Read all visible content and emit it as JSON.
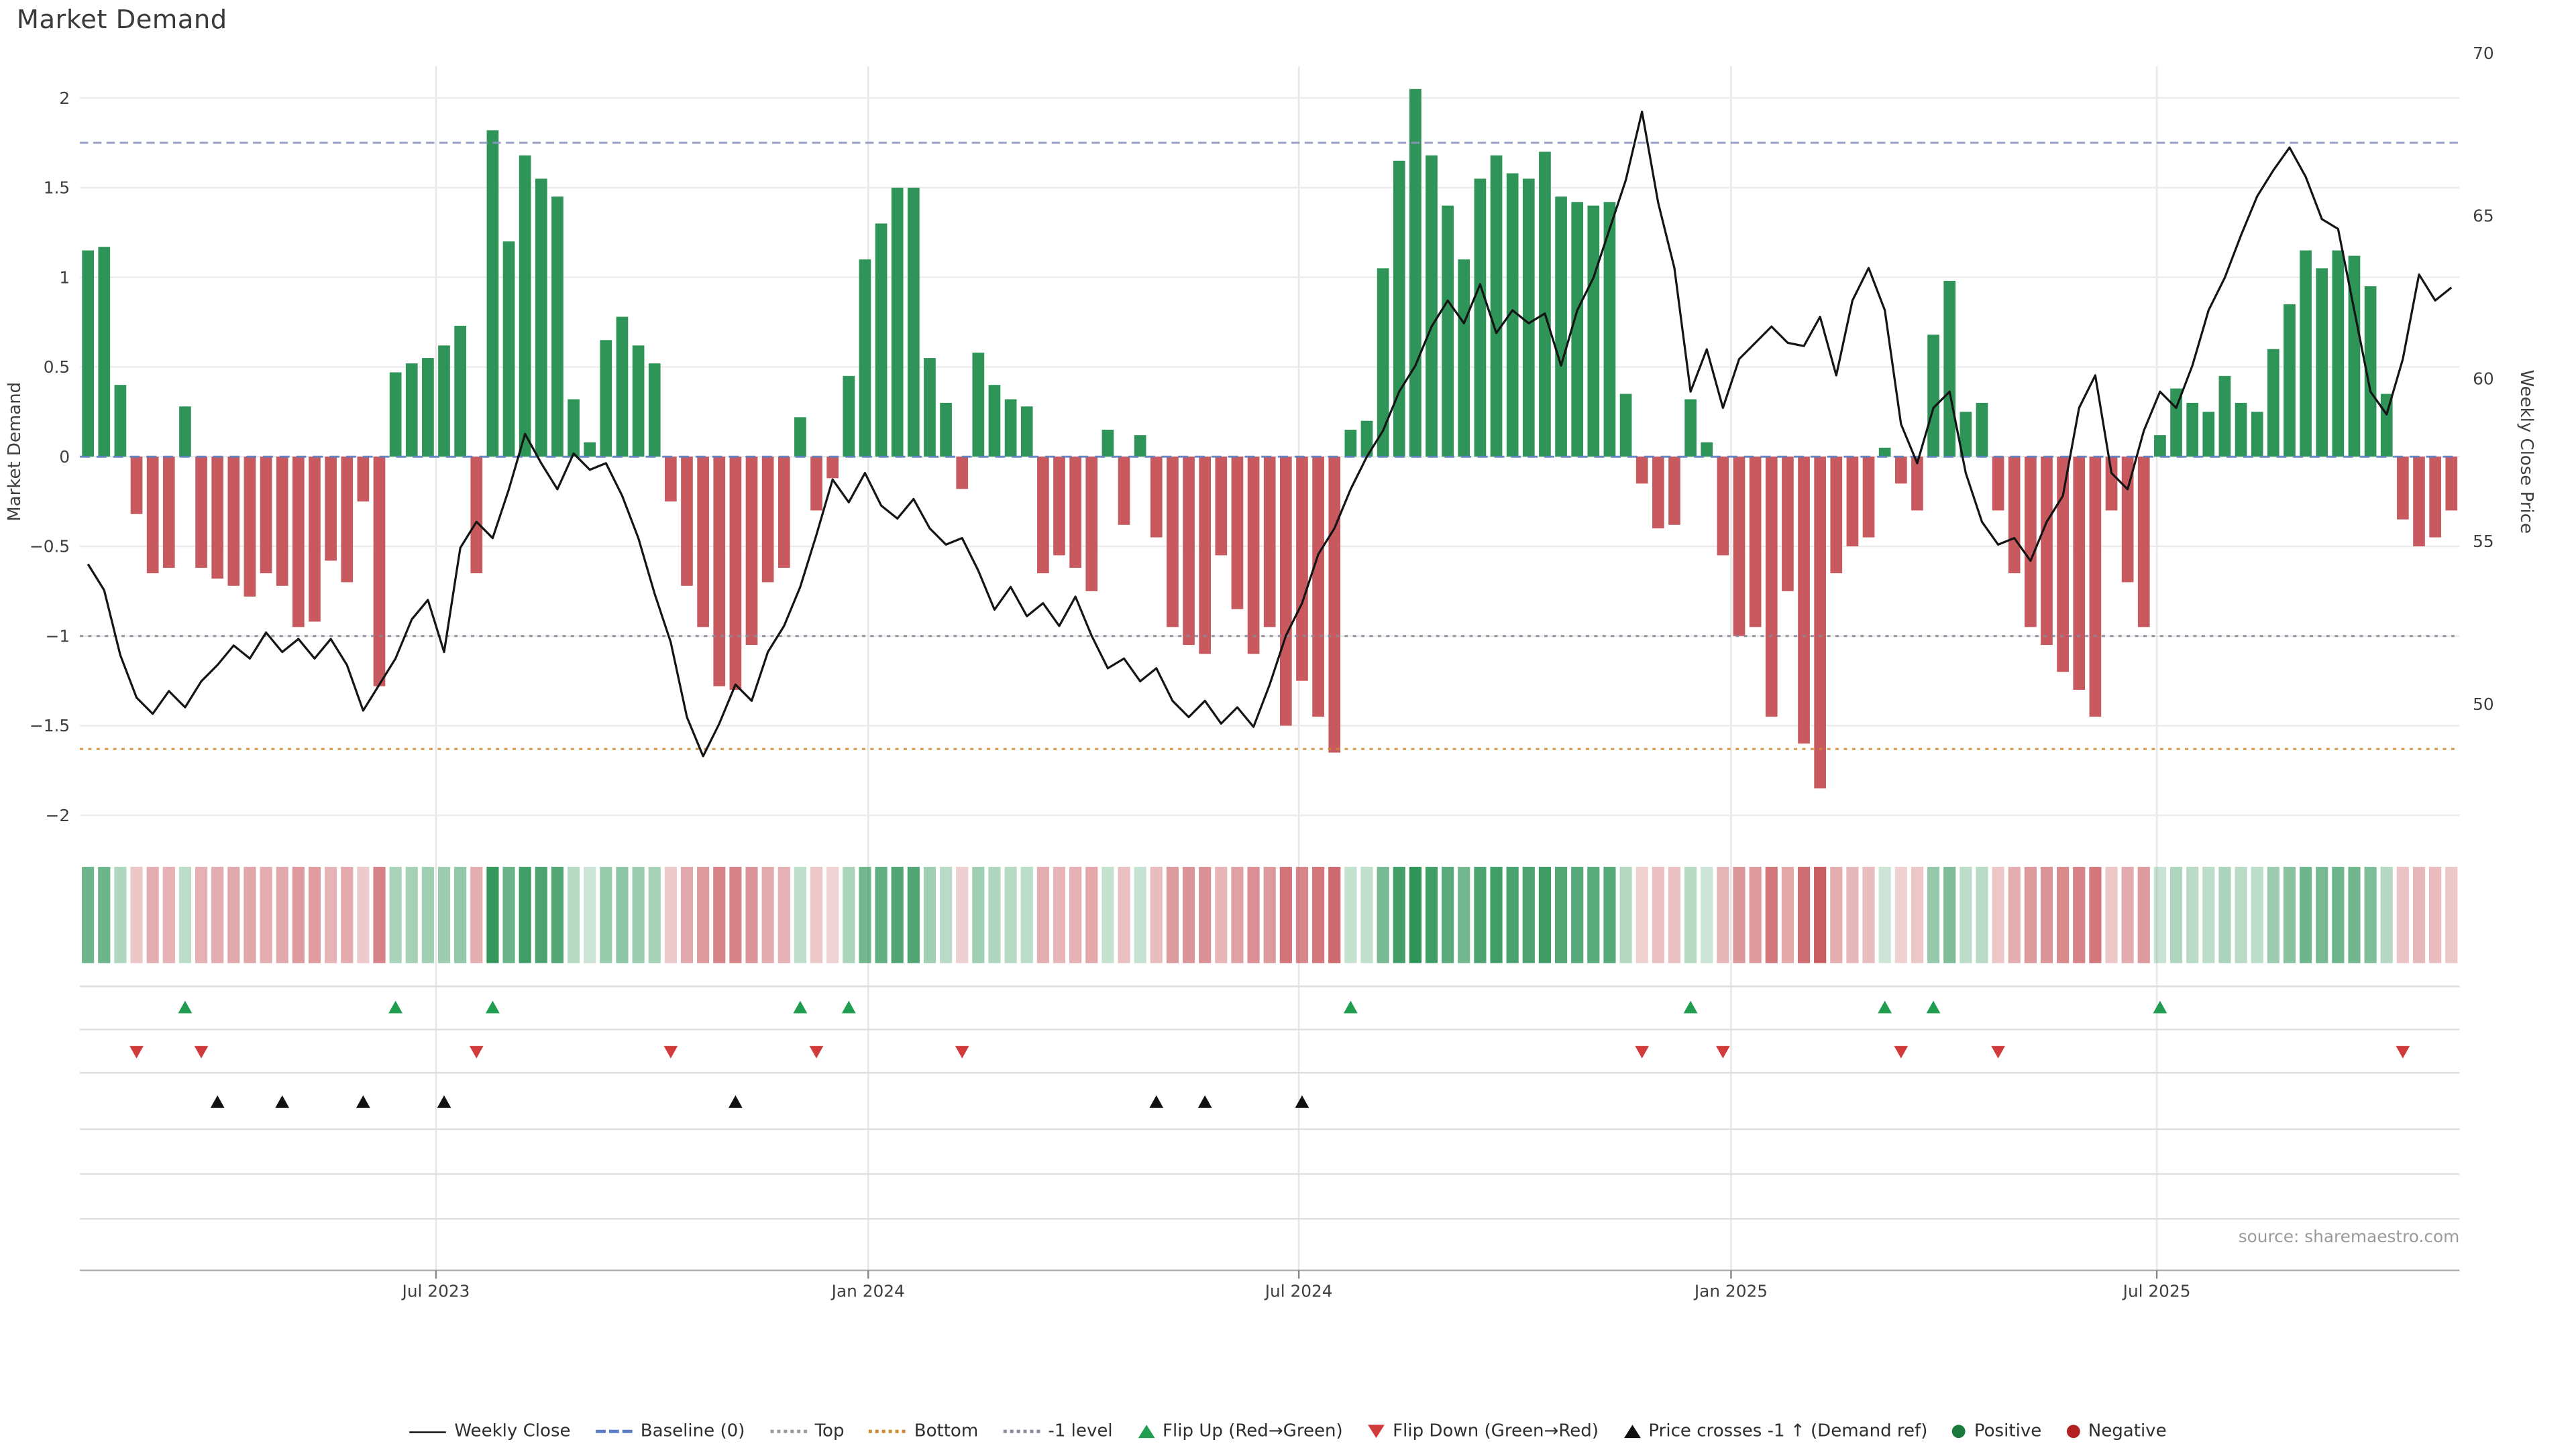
{
  "title": "Market Demand",
  "source": "source: sharemaestro.com",
  "axes": {
    "left_label": "Market Demand",
    "right_label": "Weekly Close Price",
    "left_ticks": [
      {
        "value": 2,
        "label": "2"
      },
      {
        "value": 1.5,
        "label": "1.5"
      },
      {
        "value": 1,
        "label": "1"
      },
      {
        "value": 0.5,
        "label": "0.5"
      },
      {
        "value": 0,
        "label": "0"
      },
      {
        "value": -0.5,
        "label": "−0.5"
      },
      {
        "value": -1,
        "label": "−1"
      },
      {
        "value": -1.5,
        "label": "−1.5"
      },
      {
        "value": -2,
        "label": "−2"
      }
    ],
    "right_ticks": [
      {
        "value": 70,
        "label": "70"
      },
      {
        "value": 65,
        "label": "65"
      },
      {
        "value": 60,
        "label": "60"
      },
      {
        "value": 55,
        "label": "55"
      },
      {
        "value": 50,
        "label": "50"
      }
    ]
  },
  "colors": {
    "positive_bar": "#2e9457",
    "negative_bar": "#c85a5f",
    "price_line": "#151515",
    "baseline": "#5b7fc2",
    "top_line": "#8f96c0",
    "bottom_line": "#cc8a33",
    "minus1_line": "#8a8898",
    "flip_up": "#1f9e4f",
    "flip_down": "#d13b3b",
    "price_cross": "#111111",
    "positive_dot": "#1a7a3c",
    "negative_dot": "#b22222",
    "grid": "#ececec",
    "separator": "#dedede",
    "axis_line": "#b0b0b0",
    "tick_text": "#3f3f3f",
    "source_text": "#9a9a9a"
  },
  "chart_data": {
    "type": "bar",
    "title": "Market Demand",
    "x_unit": "week",
    "x_axis": {
      "tick_labels": [
        "Jul 2023",
        "Jan 2024",
        "Jul 2024",
        "Jan 2025",
        "Jul 2025"
      ],
      "tick_weeks": [
        21.5,
        48.2,
        74.8,
        101.5,
        127.8
      ]
    },
    "y_left": {
      "label": "Market Demand",
      "range": [
        -2.18,
        2.18
      ]
    },
    "y_right": {
      "label": "Weekly Close Price",
      "range": [
        45.9,
        69.6
      ]
    },
    "grid": true,
    "legend_position": "bottom",
    "series": [
      {
        "name": "Market Demand",
        "type": "bar",
        "axis": "left",
        "values": [
          1.15,
          1.17,
          0.4,
          -0.32,
          -0.65,
          -0.62,
          0.28,
          -0.62,
          -0.68,
          -0.72,
          -0.78,
          -0.65,
          -0.72,
          -0.95,
          -0.92,
          -0.58,
          -0.7,
          -0.25,
          -1.28,
          0.47,
          0.52,
          0.55,
          0.62,
          0.73,
          -0.65,
          1.82,
          1.2,
          1.68,
          1.55,
          1.45,
          0.32,
          0.08,
          0.65,
          0.78,
          0.62,
          0.52,
          -0.25,
          -0.72,
          -0.95,
          -1.28,
          -1.3,
          -1.05,
          -0.7,
          -0.62,
          0.22,
          -0.3,
          -0.12,
          0.45,
          1.1,
          1.3,
          1.5,
          1.5,
          0.55,
          0.3,
          -0.18,
          0.58,
          0.4,
          0.32,
          0.28,
          -0.65,
          -0.55,
          -0.62,
          -0.75,
          0.15,
          -0.38,
          0.12,
          -0.45,
          -0.95,
          -1.05,
          -1.1,
          -0.55,
          -0.85,
          -1.1,
          -0.95,
          -1.5,
          -1.25,
          -1.45,
          -1.65,
          0.15,
          0.2,
          1.05,
          1.65,
          2.05,
          1.68,
          1.4,
          1.1,
          1.55,
          1.68,
          1.58,
          1.55,
          1.7,
          1.45,
          1.42,
          1.4,
          1.42,
          0.35,
          -0.15,
          -0.4,
          -0.38,
          0.32,
          0.08,
          -0.55,
          -1.0,
          -0.95,
          -1.45,
          -0.75,
          -1.6,
          -1.85,
          -0.65,
          -0.5,
          -0.45,
          0.05,
          -0.15,
          -0.3,
          0.68,
          0.98,
          0.25,
          0.3,
          -0.3,
          -0.65,
          -0.95,
          -1.05,
          -1.2,
          -1.3,
          -1.45,
          -0.3,
          -0.7,
          -0.95,
          0.12,
          0.38,
          0.3,
          0.25,
          0.45,
          0.3,
          0.25,
          0.6,
          0.85,
          1.15,
          1.05,
          1.15,
          1.12,
          0.95,
          0.35,
          -0.35,
          -0.5,
          -0.45,
          -0.3
        ]
      },
      {
        "name": "Weekly Close",
        "type": "line",
        "axis": "right",
        "values": [
          54.3,
          53.5,
          51.5,
          50.2,
          49.7,
          50.4,
          49.9,
          50.7,
          51.2,
          51.8,
          51.4,
          52.2,
          51.6,
          52.0,
          51.4,
          52.0,
          51.2,
          49.8,
          50.6,
          51.4,
          52.6,
          53.2,
          51.6,
          54.8,
          55.6,
          55.1,
          56.6,
          58.3,
          57.4,
          56.6,
          57.7,
          57.2,
          57.4,
          56.4,
          55.1,
          53.4,
          51.9,
          49.6,
          48.4,
          49.4,
          50.6,
          50.1,
          51.6,
          52.4,
          53.6,
          55.2,
          56.9,
          56.2,
          57.1,
          56.1,
          55.7,
          56.3,
          55.4,
          54.9,
          55.1,
          54.1,
          52.9,
          53.6,
          52.7,
          53.1,
          52.4,
          53.3,
          52.1,
          51.1,
          51.4,
          50.7,
          51.1,
          50.1,
          49.6,
          50.1,
          49.4,
          49.9,
          49.3,
          50.6,
          52.1,
          53.1,
          54.6,
          55.4,
          56.6,
          57.6,
          58.4,
          59.6,
          60.4,
          61.6,
          62.4,
          61.7,
          62.9,
          61.4,
          62.1,
          61.7,
          62.0,
          60.4,
          62.1,
          63.1,
          64.6,
          66.1,
          68.2,
          65.4,
          63.4,
          59.6,
          60.9,
          59.1,
          60.6,
          61.1,
          61.6,
          61.1,
          61.0,
          61.9,
          60.1,
          62.4,
          63.4,
          62.1,
          58.6,
          57.4,
          59.1,
          59.6,
          57.1,
          55.6,
          54.9,
          55.1,
          54.4,
          55.6,
          56.4,
          59.1,
          60.1,
          57.1,
          56.6,
          58.4,
          59.6,
          59.1,
          60.4,
          62.1,
          63.1,
          64.4,
          65.6,
          66.4,
          67.1,
          66.2,
          64.9,
          64.6,
          62.1,
          59.6,
          58.9,
          60.6,
          63.2,
          62.4,
          62.8
        ]
      }
    ],
    "reference_lines": [
      {
        "name": "Baseline (0)",
        "value": 0,
        "color": "#5b7fc2",
        "dash": "6,4"
      },
      {
        "name": "Top",
        "value": 1.75,
        "color": "#8f96c0",
        "dash": "5,3"
      },
      {
        "name": "Bottom",
        "value": -1.63,
        "color": "#cc8a33",
        "dash": "2,3"
      },
      {
        "name": "-1 level",
        "value": -1,
        "color": "#8a8898",
        "dash": "2,3"
      }
    ],
    "markers": {
      "flip_up_weeks": [
        6,
        19,
        25,
        44,
        47,
        78,
        99,
        111,
        114,
        128
      ],
      "flip_down_weeks": [
        3,
        7,
        24,
        36,
        45,
        54,
        96,
        101,
        112,
        118,
        143
      ],
      "price_cross_minus1_weeks": [
        8,
        12,
        17,
        22,
        40,
        66,
        69,
        75
      ]
    },
    "heatmap_strip": "cell color derived from Market Demand sign (green positive / red negative), saturation scaled by magnitude"
  },
  "legend": {
    "items": [
      {
        "label": "Weekly Close",
        "glyph": "solid-line",
        "color": "#111111"
      },
      {
        "label": "Baseline (0)",
        "glyph": "dashed-line",
        "color": "#5b7fc2"
      },
      {
        "label": "Top",
        "glyph": "dotted-line",
        "color": "#999999"
      },
      {
        "label": "Bottom",
        "glyph": "dotted-line",
        "color": "#cc8a33"
      },
      {
        "label": "-1 level",
        "glyph": "dotted-line",
        "color": "#8a8898"
      },
      {
        "label": "Flip Up (Red→Green)",
        "glyph": "triangle-up",
        "color": "#1f9e4f"
      },
      {
        "label": "Flip Down (Green→Red)",
        "glyph": "triangle-down",
        "color": "#d13b3b"
      },
      {
        "label": "Price crosses -1 ↑ (Demand ref)",
        "glyph": "triangle-up",
        "color": "#111111"
      },
      {
        "label": "Positive",
        "glyph": "circle",
        "color": "#1a7a3c"
      },
      {
        "label": "Negative",
        "glyph": "circle",
        "color": "#b22222"
      }
    ]
  }
}
